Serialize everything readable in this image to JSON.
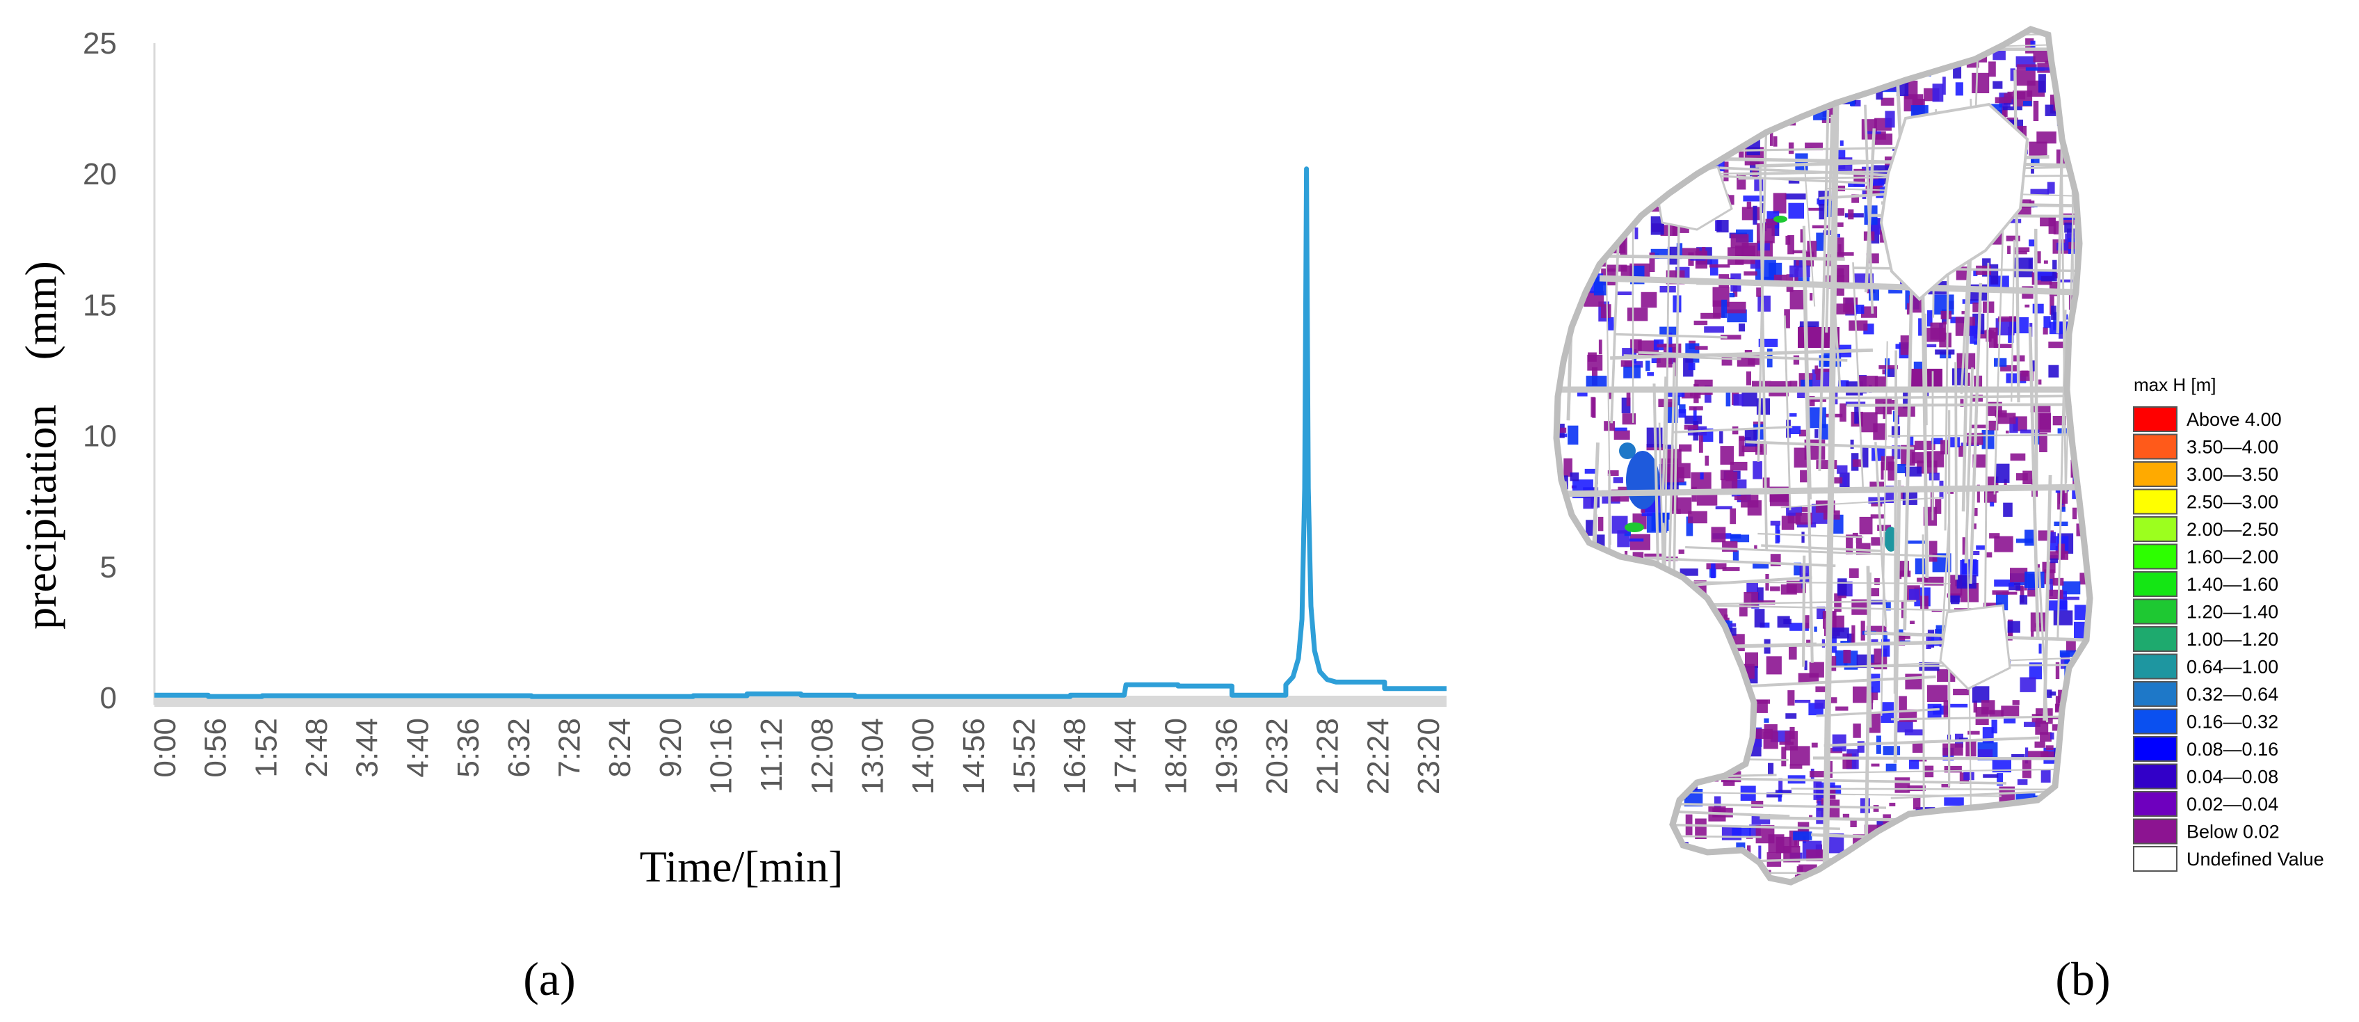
{
  "chart_data": [
    {
      "type": "line",
      "ylabel": "precipitation　(mm)",
      "xlabel": "Time/[min]",
      "ylim": [
        0,
        25
      ],
      "yticks": [
        0,
        5,
        10,
        15,
        20,
        25
      ],
      "x_range_minutes": [
        0,
        1439
      ],
      "xticks": [
        "0:00",
        "0:56",
        "1:52",
        "2:48",
        "3:44",
        "4:40",
        "5:36",
        "6:32",
        "7:28",
        "8:24",
        "9:20",
        "10:16",
        "11:12",
        "12:08",
        "13:04",
        "14:00",
        "14:56",
        "15:52",
        "16:48",
        "17:44",
        "18:40",
        "19:36",
        "20:32",
        "21:28",
        "22:24",
        "23:20"
      ],
      "series": [
        {
          "color": "#2e9fd8",
          "points": [
            [
              0,
              0.1
            ],
            [
              60,
              0.1
            ],
            [
              60,
              0.05
            ],
            [
              120,
              0.05
            ],
            [
              120,
              0.08
            ],
            [
              420,
              0.08
            ],
            [
              420,
              0.05
            ],
            [
              600,
              0.05
            ],
            [
              600,
              0.08
            ],
            [
              660,
              0.08
            ],
            [
              660,
              0.15
            ],
            [
              720,
              0.15
            ],
            [
              720,
              0.1
            ],
            [
              780,
              0.1
            ],
            [
              780,
              0.05
            ],
            [
              1020,
              0.05
            ],
            [
              1020,
              0.1
            ],
            [
              1080,
              0.1
            ],
            [
              1082,
              0.5
            ],
            [
              1140,
              0.5
            ],
            [
              1140,
              0.45
            ],
            [
              1200,
              0.45
            ],
            [
              1200,
              0.1
            ],
            [
              1260,
              0.1
            ],
            [
              1260,
              0.5
            ],
            [
              1268,
              0.8
            ],
            [
              1274,
              1.5
            ],
            [
              1278,
              3
            ],
            [
              1281,
              8
            ],
            [
              1283,
              20.2
            ],
            [
              1285,
              8
            ],
            [
              1288,
              3.5
            ],
            [
              1292,
              1.8
            ],
            [
              1298,
              1.0
            ],
            [
              1306,
              0.7
            ],
            [
              1316,
              0.6
            ],
            [
              1370,
              0.6
            ],
            [
              1370,
              0.35
            ],
            [
              1439,
              0.35
            ]
          ]
        }
      ],
      "panel_label": "(a)"
    },
    {
      "type": "map",
      "legend_title": "max H [m]",
      "legend": [
        {
          "label": "Above 4.00",
          "color": "#ff0000"
        },
        {
          "label": "3.50—4.00",
          "color": "#ff5a1a"
        },
        {
          "label": "3.00—3.50",
          "color": "#ffaa00"
        },
        {
          "label": "2.50—3.00",
          "color": "#ffff00"
        },
        {
          "label": "2.00—2.50",
          "color": "#9cff1e"
        },
        {
          "label": "1.60—2.00",
          "color": "#2dff00"
        },
        {
          "label": "1.40—1.60",
          "color": "#14e614"
        },
        {
          "label": "1.20—1.40",
          "color": "#1ec832"
        },
        {
          "label": "1.00—1.20",
          "color": "#1eaa6e"
        },
        {
          "label": "0.64—1.00",
          "color": "#1e96a0"
        },
        {
          "label": "0.32—0.64",
          "color": "#1e78c8"
        },
        {
          "label": "0.16—0.32",
          "color": "#0a50f0"
        },
        {
          "label": "0.08—0.16",
          "color": "#0000ff"
        },
        {
          "label": "0.04—0.08",
          "color": "#3200c8"
        },
        {
          "label": "0.02—0.04",
          "color": "#6e00be"
        },
        {
          "label": "Below 0.02",
          "color": "#8c1491"
        },
        {
          "label": "Undefined Value",
          "color": "#ffffff"
        }
      ],
      "panel_label": "(b)"
    }
  ]
}
